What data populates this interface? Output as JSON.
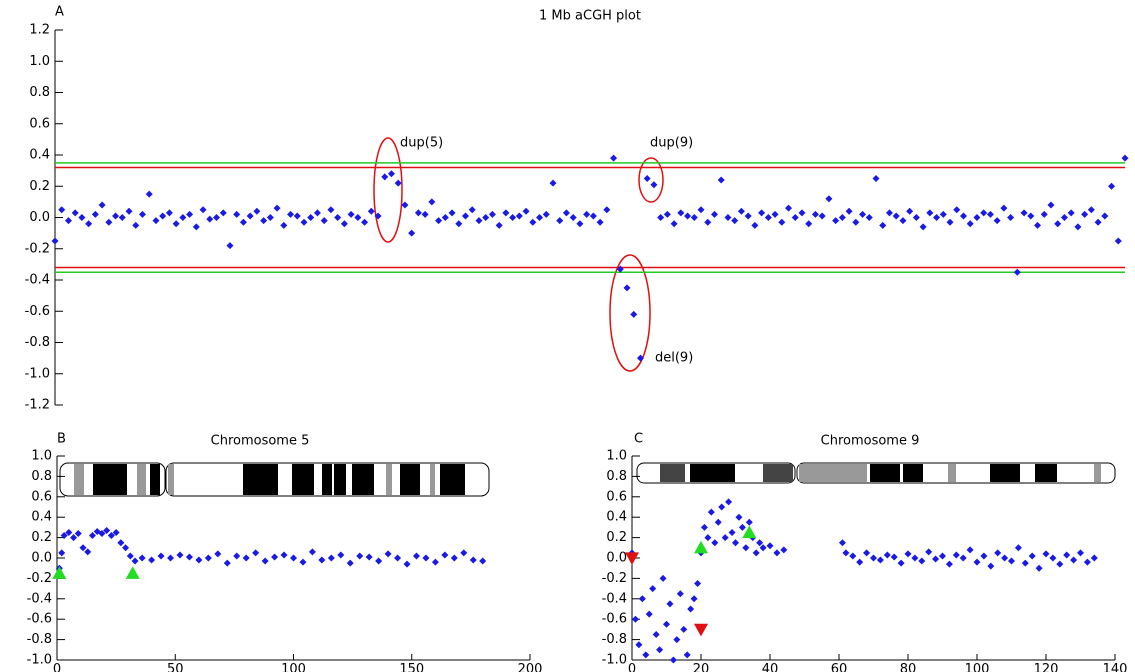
{
  "chart_data": [
    {
      "type": "scatter",
      "panel": "A",
      "title": "1 Mb aCGH plot",
      "color": "#1a1ae6",
      "values": [
        -0.15,
        0.05,
        -0.02,
        0.03,
        0.0,
        -0.04,
        0.02,
        0.08,
        -0.03,
        0.01,
        0.0,
        0.04,
        -0.05,
        0.02,
        0.15,
        -0.02,
        0.01,
        0.03,
        -0.04,
        0.0,
        0.02,
        -0.06,
        0.05,
        -0.01,
        0.0,
        0.03,
        -0.18,
        0.02,
        -0.03,
        0.01,
        0.04,
        -0.02,
        0.0,
        0.06,
        -0.05,
        0.02,
        0.01,
        -0.03,
        0.0,
        0.03,
        -0.02,
        0.05,
        0.0,
        -0.04,
        0.02,
        0.0,
        -0.03,
        0.04,
        0.01,
        0.26,
        0.28,
        0.22,
        0.08,
        -0.1,
        0.03,
        0.02,
        0.1,
        -0.02,
        0.0,
        0.03,
        -0.04,
        0.01,
        0.05,
        -0.02,
        0.0,
        0.02,
        -0.05,
        0.03,
        0.0,
        0.01,
        0.04,
        -0.03,
        0.0,
        0.02,
        0.22,
        -0.02,
        0.03,
        0.0,
        -0.04,
        0.02,
        0.01,
        -0.03,
        0.05,
        0.38,
        -0.33,
        -0.45,
        -0.62,
        -0.9,
        0.25,
        0.21,
        0.0,
        0.02,
        -0.04,
        0.03,
        0.01,
        0.0,
        0.05,
        -0.03,
        0.02,
        0.24,
        0.0,
        -0.02,
        0.04,
        0.01,
        -0.05,
        0.03,
        0.0,
        0.02,
        -0.03,
        0.06,
        0.0,
        0.03,
        -0.04,
        0.02,
        0.01,
        0.12,
        -0.02,
        0.0,
        0.04,
        -0.03,
        0.02,
        0.0,
        0.25,
        -0.05,
        0.03,
        0.01,
        -0.02,
        0.04,
        0.0,
        -0.06,
        0.03,
        0.0,
        0.02,
        -0.03,
        0.05,
        0.01,
        -0.04,
        0.0,
        0.03,
        0.02,
        -0.02,
        0.06,
        0.0,
        -0.35,
        0.03,
        0.01,
        -0.05,
        0.02,
        0.08,
        -0.04,
        0.0,
        0.03,
        -0.06,
        0.02,
        0.05,
        -0.03,
        0.01,
        0.2,
        -0.15,
        0.38
      ],
      "ylim": [
        -1.2,
        1.2
      ],
      "yticks": [
        1.2,
        {
          "value": 1,
          "label": "1.0"
        },
        0.8,
        0.6,
        0.4,
        0.2,
        {
          "value": 0,
          "label": "0.0"
        },
        -0.2,
        -0.4,
        -0.6,
        -0.8,
        {
          "value": -1,
          "label": "-1.0"
        },
        -1.2
      ],
      "hlines": [
        {
          "value": 0.35,
          "color": "#22cc22"
        },
        {
          "value": 0.32,
          "color": "#e01010"
        },
        {
          "value": -0.32,
          "color": "#e01010"
        },
        {
          "value": -0.35,
          "color": "#22cc22"
        }
      ],
      "annotations": [
        "dup(5)",
        "dup(9)",
        "del(9)"
      ]
    },
    {
      "type": "scatter",
      "panel": "B",
      "title": "Chromosome 5",
      "color": "#1a1ae6",
      "x": [
        1,
        2,
        3,
        5,
        7,
        9,
        11,
        13,
        15,
        17,
        19,
        21,
        23,
        25,
        27,
        29,
        31,
        33,
        36,
        40,
        44,
        48,
        52,
        56,
        60,
        64,
        68,
        72,
        76,
        80,
        84,
        88,
        92,
        96,
        100,
        104,
        108,
        112,
        116,
        120,
        124,
        128,
        132,
        136,
        140,
        144,
        148,
        152,
        156,
        160,
        164,
        168,
        172,
        176,
        180
      ],
      "values": [
        -0.1,
        0.05,
        0.22,
        0.25,
        0.2,
        0.24,
        0.1,
        0.06,
        0.22,
        0.26,
        0.24,
        0.27,
        0.22,
        0.25,
        0.15,
        0.1,
        0.02,
        -0.03,
        0.0,
        -0.02,
        0.02,
        0.0,
        0.03,
        0.01,
        -0.02,
        0.0,
        0.04,
        -0.05,
        0.02,
        0.0,
        0.05,
        -0.03,
        0.01,
        0.03,
        0.0,
        -0.04,
        0.06,
        -0.02,
        0.0,
        0.03,
        -0.05,
        0.02,
        0.01,
        -0.03,
        0.04,
        0.0,
        -0.06,
        0.02,
        0.0,
        -0.04,
        0.03,
        0.0,
        0.05,
        -0.02,
        -0.03
      ],
      "xlim": [
        0,
        200
      ],
      "xticks": [
        0,
        50,
        100,
        150,
        200
      ],
      "ylim": [
        -1,
        1
      ],
      "yticks": [
        {
          "value": 1,
          "label": "1.0"
        },
        0.8,
        0.6,
        0.4,
        0.2,
        {
          "value": 0,
          "label": "0.0"
        },
        -0.2,
        -0.4,
        -0.6,
        -0.8,
        {
          "value": -1,
          "label": "-1.0"
        }
      ],
      "markers": [
        {
          "x": 1,
          "y": -0.15,
          "shape": "triangle-up",
          "color": "#22dd22"
        },
        {
          "x": 32,
          "y": -0.15,
          "shape": "triangle-up",
          "color": "#22dd22"
        }
      ]
    },
    {
      "type": "scatter",
      "panel": "C",
      "title": "Chromosome 9",
      "color": "#1a1ae6",
      "x": [
        0,
        1,
        2,
        3,
        4,
        5,
        6,
        7,
        8,
        9,
        10,
        11,
        12,
        13,
        14,
        15,
        16,
        17,
        18,
        19,
        20,
        21,
        22,
        23,
        24,
        25,
        26,
        27,
        28,
        29,
        30,
        31,
        32,
        33,
        34,
        35,
        36,
        37,
        38,
        40,
        42,
        44,
        61,
        62,
        64,
        66,
        68,
        70,
        72,
        74,
        76,
        78,
        80,
        82,
        84,
        86,
        88,
        90,
        92,
        94,
        96,
        98,
        100,
        102,
        104,
        106,
        108,
        110,
        112,
        114,
        116,
        118,
        120,
        122,
        124,
        126,
        128,
        130,
        132,
        134
      ],
      "values": [
        0.05,
        -0.6,
        -0.85,
        -0.4,
        -0.95,
        -0.55,
        -0.3,
        -0.75,
        -0.9,
        -0.2,
        -0.65,
        -0.45,
        -1.0,
        -0.8,
        -0.35,
        -0.7,
        -0.95,
        -0.5,
        -0.4,
        -0.25,
        0.05,
        0.3,
        0.2,
        0.45,
        0.15,
        0.35,
        0.5,
        0.2,
        0.55,
        0.25,
        0.15,
        0.4,
        0.3,
        0.1,
        0.35,
        0.2,
        0.05,
        0.15,
        0.1,
        0.12,
        0.05,
        0.08,
        0.15,
        0.05,
        0.02,
        -0.04,
        0.05,
        0.0,
        -0.02,
        0.03,
        0.01,
        -0.05,
        0.04,
        0.0,
        -0.03,
        0.06,
        -0.01,
        0.02,
        -0.06,
        0.03,
        0.0,
        0.08,
        -0.04,
        0.02,
        -0.08,
        0.05,
        0.0,
        -0.03,
        0.1,
        -0.05,
        0.02,
        -0.1,
        0.04,
        0.0,
        -0.06,
        0.03,
        -0.02,
        0.05,
        -0.04,
        0.0
      ],
      "xlim": [
        0,
        140
      ],
      "xticks": [
        0,
        20,
        40,
        60,
        80,
        100,
        120,
        140
      ],
      "ylim": [
        -1,
        1
      ],
      "yticks": [
        {
          "value": 1,
          "label": "1.0"
        },
        0.8,
        0.6,
        0.4,
        0.2,
        {
          "value": 0,
          "label": "0.0"
        },
        -0.2,
        -0.4,
        -0.6,
        -0.8,
        {
          "value": -1,
          "label": "-1.0"
        }
      ],
      "markers": [
        {
          "x": 0,
          "y": 0,
          "shape": "triangle-down",
          "color": "#e01010"
        },
        {
          "x": 20,
          "y": -0.7,
          "shape": "triangle-down",
          "color": "#e01010"
        },
        {
          "x": 20,
          "y": 0.1,
          "shape": "triangle-up",
          "color": "#22dd22"
        },
        {
          "x": 34,
          "y": 0.25,
          "shape": "triangle-up",
          "color": "#22dd22"
        }
      ]
    }
  ]
}
